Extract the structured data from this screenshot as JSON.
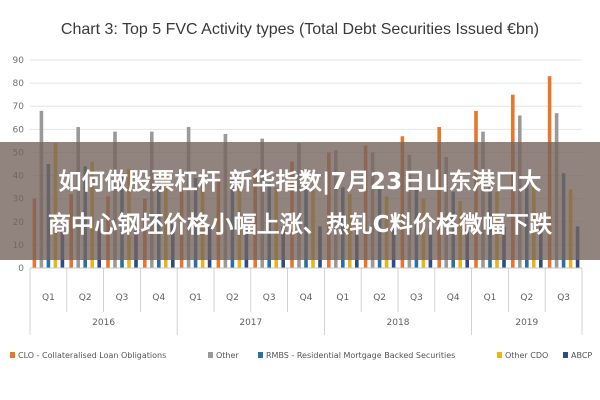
{
  "colors": {
    "CLO": "#e8762d",
    "Other": "#9a9a9a",
    "RMBS": "#2c6fa0",
    "Other CDO": "#eab515",
    "ABCP": "#2e4a8a",
    "grid": "#e6e6e6",
    "axis": "#c8c8c8",
    "overlay": "#76645c"
  },
  "overlay": {
    "line1": "如何做股票杠杆 新华指数|7月23日山东港口大",
    "line2": "商中心钢坯价格小幅上涨、热轧C料价格微幅下跌"
  },
  "chart_data": {
    "type": "bar",
    "title": "Chart 3: Top 5 FVC Activity types (Total Debt Securities Issued €bn)",
    "xlabel": "",
    "ylabel": "",
    "ylim": [
      0,
      90
    ],
    "yticks": [
      "0",
      "10",
      "20",
      "30",
      "40",
      "50",
      "60",
      "70",
      "80",
      "90"
    ],
    "grid": true,
    "legend_position": "bottom",
    "categories": [
      "Q1",
      "Q2",
      "Q3",
      "Q4",
      "Q1",
      "Q2",
      "Q3",
      "Q4",
      "Q1",
      "Q2",
      "Q3",
      "Q4",
      "Q1",
      "Q2",
      "Q3"
    ],
    "groups": [
      {
        "label": "2016",
        "count": 4
      },
      {
        "label": "2017",
        "count": 4
      },
      {
        "label": "2018",
        "count": 4
      },
      {
        "label": "2019",
        "count": 3
      }
    ],
    "series": [
      {
        "name": "CLO - Collateralised Loan Obligations",
        "key": "CLO",
        "values": [
          30,
          32,
          31,
          30,
          34,
          38,
          43,
          46,
          50,
          53,
          57,
          61,
          68,
          75,
          83
        ]
      },
      {
        "name": "Other",
        "key": "Other",
        "values": [
          68,
          61,
          59,
          59,
          61,
          58,
          56,
          54,
          51,
          50,
          49,
          48,
          59,
          66,
          67
        ]
      },
      {
        "name": "RMBS - Residential Mortgage Backed Securities",
        "key": "RMBS",
        "values": [
          45,
          44,
          41,
          40,
          39,
          38,
          37,
          36,
          35,
          35,
          34,
          33,
          35,
          37,
          41
        ]
      },
      {
        "name": "Other CDO",
        "key": "Other CDO",
        "values": [
          54,
          46,
          43,
          41,
          39,
          37,
          35,
          34,
          32,
          31,
          30,
          29,
          33,
          35,
          34
        ]
      },
      {
        "name": "ABCP",
        "key": "ABCP",
        "values": [
          20,
          20,
          19,
          19,
          18,
          18,
          18,
          18,
          18,
          17,
          17,
          17,
          18,
          18,
          18
        ]
      }
    ]
  }
}
